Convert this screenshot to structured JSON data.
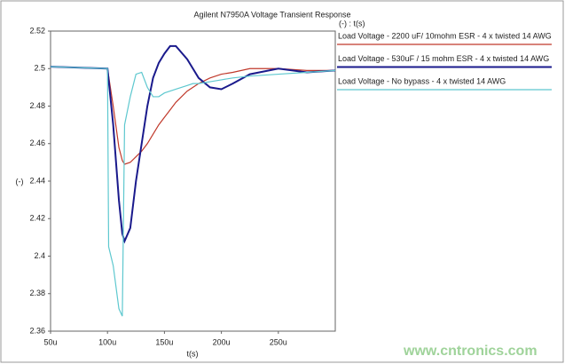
{
  "chart_data": {
    "type": "line",
    "title": "Agilent N7950A Voltage Transient Response",
    "legend_title": "(-) : t(s)",
    "x_label": "t(s)",
    "y_label": "(-)",
    "watermark": "www.cntronics.com",
    "x": [
      50,
      100,
      101,
      105,
      110,
      113,
      115,
      120,
      125,
      130,
      135,
      140,
      145,
      150,
      155,
      160,
      170,
      175,
      180,
      190,
      200,
      210,
      225,
      250,
      275,
      300
    ],
    "series": [
      {
        "name": "Load Voltage - 2200 uF/ 10mohm ESR - 4 x twisted 14 AWG",
        "color": "#c0392b",
        "values": [
          2.501,
          2.5,
          2.496,
          2.48,
          2.458,
          2.451,
          2.449,
          2.45,
          2.453,
          2.456,
          2.46,
          2.465,
          2.47,
          2.474,
          2.478,
          2.482,
          2.488,
          2.49,
          2.492,
          2.495,
          2.497,
          2.498,
          2.5,
          2.5,
          2.499,
          2.499
        ]
      },
      {
        "name": "Load Voltage - 530uF / 15 mohm ESR - 4 x twisted 14 AWG",
        "color": "#1a1a8c",
        "values": [
          2.501,
          2.5,
          2.494,
          2.47,
          2.43,
          2.412,
          2.408,
          2.415,
          2.44,
          2.46,
          2.48,
          2.495,
          2.503,
          2.508,
          2.512,
          2.512,
          2.505,
          2.5,
          2.495,
          2.49,
          2.489,
          2.492,
          2.497,
          2.5,
          2.498,
          2.499
        ]
      },
      {
        "name": "Load Voltage - No bypass - 4 x twisted 14 AWG",
        "color": "#5ec8cf",
        "values": [
          2.501,
          2.5,
          2.405,
          2.395,
          2.372,
          2.368,
          2.47,
          2.485,
          2.497,
          2.498,
          2.49,
          2.485,
          2.485,
          2.487,
          2.488,
          2.489,
          2.491,
          2.492,
          2.492,
          2.493,
          2.494,
          2.495,
          2.496,
          2.497,
          2.498,
          2.499
        ]
      }
    ],
    "xlim": [
      50,
      300
    ],
    "xticks": [
      {
        "value": 50,
        "label": "50u"
      },
      {
        "value": 100,
        "label": "100u"
      },
      {
        "value": 150,
        "label": "150u"
      },
      {
        "value": 200,
        "label": "200u"
      },
      {
        "value": 250,
        "label": "250u"
      }
    ],
    "ylim": [
      2.36,
      2.52
    ],
    "yticks": [
      2.36,
      2.38,
      2.4,
      2.42,
      2.44,
      2.46,
      2.48,
      2.5,
      2.52
    ]
  }
}
